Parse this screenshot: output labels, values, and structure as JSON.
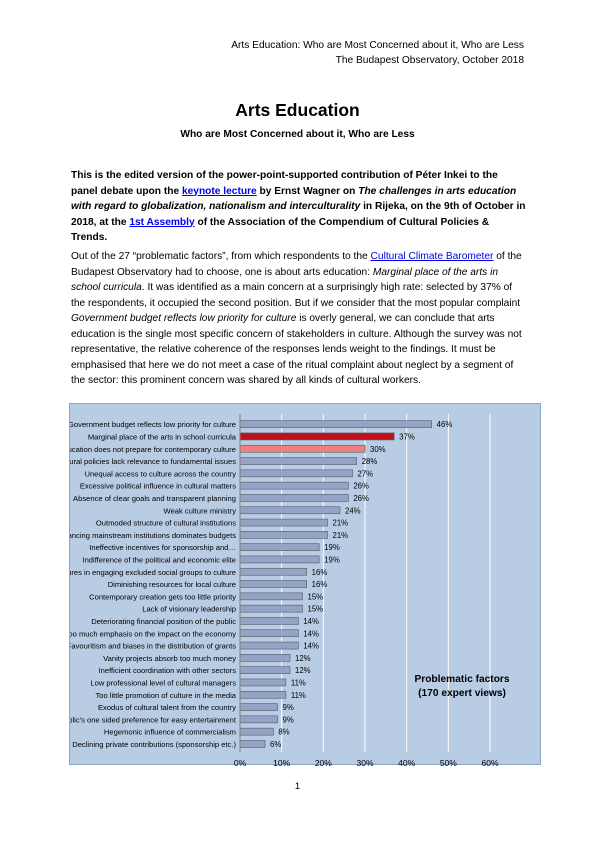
{
  "header": {
    "line1": "Arts Education: Who are Most Concerned about it, Who are Less",
    "line2": "The Budapest Observatory, October 2018"
  },
  "title": "Arts Education",
  "subtitle": "Who are Most Concerned about it, Who are Less",
  "intro": {
    "t1": "This is the edited version of the power-point-supported contribution of Péter Inkei to the panel debate upon the ",
    "link1": "keynote lecture",
    "t2": " by Ernst Wagner on ",
    "italic1": "The challenges in arts education with regard to globalization, nationalism and interculturality",
    "t3": " in Rijeka, on the 9th of October in 2018, at the ",
    "link2": "1st Assembly",
    "t4": " of the Association of the Compendium of Cultural Policies & Trends."
  },
  "body": {
    "t1": "Out of the 27 “problematic factors”, from which respondents to the ",
    "link1": "Cultural Climate Barometer",
    "t2": " of the Budapest Observatory had to choose, one is about arts education: ",
    "italic1": "Marginal place of the arts in school curricula",
    "t3": ". It was identified as a main concern at a surprisingly high rate: selected by 37% of the respondents, it occupied the second position. But if we consider that the most popular complaint ",
    "italic2": "Government budget reflects low priority for culture",
    "t4": " is overly general, we can conclude that arts education is the single most specific concern of stakeholders in culture. Although the survey was not representative, the relative coherence of the responses lends weight to the findings. It must be emphasised that here we do not meet a case of the ritual complaint about neglect by a segment of the sector: this prominent concern was shared by all kinds of cultural workers."
  },
  "chart_note": {
    "line1": "Problematic factors",
    "line2": "(170 expert views)"
  },
  "page_number": "1",
  "chart_data": {
    "type": "bar",
    "orientation": "horizontal",
    "categories": [
      "Government budget reflects low priority for culture",
      "Marginal place of the arts in school curricula",
      "Education does not prepare for contemporary culture",
      "Cultural policies lack relevance to fundamental issues",
      "Unequal access to culture across the country",
      "Excessive political influence in cultural matters",
      "Absence of clear goals and transparent planning",
      "Weak culture ministry",
      "Outmoded structure of cultural institutions",
      "Financing mainstream institutions dominates budgets",
      "Ineffective incentives for sponsorship and…",
      "Indifference of the political and economic elite",
      "Failures in engaging excluded social groups to culture",
      "Diminishing resources for local culture",
      "Contemporary creation gets too little priority",
      "Lack of visionary leadership",
      "Deteriorating financial position of the public",
      "Too much emphasis on the impact on the economy",
      "Favouritism and biases in the distribution of grants",
      "Vanity projects absorb too much money",
      "Inefficient coordination with other sectors",
      "Low professional level of cultural managers",
      "Too little promotion of culture in the media",
      "Exodus of cultural talent from the country",
      "Public's one sided preference for easy entertainment",
      "Hegemonic influence of commercialism",
      "Declining private contributions (sponsorship etc.)"
    ],
    "values": [
      46,
      37,
      30,
      28,
      27,
      26,
      26,
      24,
      21,
      21,
      19,
      19,
      16,
      16,
      15,
      15,
      14,
      14,
      14,
      12,
      12,
      11,
      11,
      9,
      9,
      8,
      6
    ],
    "value_labels": [
      "46%",
      "37%",
      "30%",
      "28%",
      "27%",
      "26%",
      "26%",
      "24%",
      "21%",
      "21%",
      "19%",
      "19%",
      "16%",
      "16%",
      "15%",
      "15%",
      "14%",
      "14%",
      "14%",
      "12%",
      "12%",
      "11%",
      "11%",
      "9%",
      "9%",
      "8%",
      "6%"
    ],
    "xlim": [
      0,
      60
    ],
    "ticks": [
      0,
      10,
      20,
      30,
      40,
      50,
      60
    ],
    "tick_labels": [
      "0%",
      "10%",
      "20%",
      "30%",
      "40%",
      "50%",
      "60%"
    ],
    "colors": {
      "default": "#95a3c4",
      "highlight_1": "#c0121c",
      "highlight_2": "#f08080",
      "background": "#b8cce4",
      "grid": "#ffffff"
    },
    "highlight_index": {
      "Marginal place of the arts in school curricula": "highlight_1",
      "Education does not prepare for contemporary culture": "highlight_2"
    },
    "grid": true
  }
}
